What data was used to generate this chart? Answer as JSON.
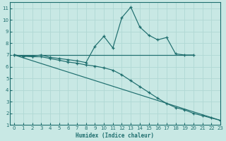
{
  "xlabel": "Humidex (Indice chaleur)",
  "bg_color": "#c8e8e4",
  "line_color": "#1e6e6e",
  "grid_color": "#b0d8d4",
  "xlim": [
    -0.5,
    23
  ],
  "ylim": [
    1,
    11.5
  ],
  "xticks": [
    0,
    1,
    2,
    3,
    4,
    5,
    6,
    7,
    8,
    9,
    10,
    11,
    12,
    13,
    14,
    15,
    16,
    17,
    18,
    19,
    20,
    21,
    22,
    23
  ],
  "yticks": [
    1,
    2,
    3,
    4,
    5,
    6,
    7,
    8,
    9,
    10,
    11
  ],
  "line1_x": [
    0,
    1,
    2,
    3,
    4,
    5,
    6,
    7,
    8,
    9,
    10,
    11,
    12,
    13,
    14,
    15,
    16,
    17,
    18,
    19,
    20
  ],
  "line1_y": [
    7.0,
    6.9,
    6.9,
    7.0,
    6.8,
    6.7,
    6.6,
    6.5,
    6.35,
    7.75,
    8.6,
    7.6,
    10.2,
    11.1,
    9.4,
    8.7,
    8.3,
    8.5,
    7.1,
    7.0,
    7.0
  ],
  "line2_x": [
    0,
    1,
    2,
    3,
    4,
    5,
    6,
    7,
    8,
    9,
    10,
    11,
    12,
    13,
    14,
    15,
    16,
    17,
    18,
    19,
    20,
    21,
    22,
    23
  ],
  "line2_y": [
    7.0,
    6.9,
    6.85,
    6.85,
    6.7,
    6.55,
    6.4,
    6.3,
    6.15,
    6.05,
    5.9,
    5.7,
    5.3,
    4.8,
    4.3,
    3.8,
    3.3,
    2.85,
    2.5,
    2.3,
    2.0,
    1.8,
    1.6,
    1.4
  ],
  "line3_x": [
    0,
    23
  ],
  "line3_y": [
    7.0,
    1.4
  ],
  "line4_x": [
    0,
    20
  ],
  "line4_y": [
    7.0,
    7.0
  ]
}
